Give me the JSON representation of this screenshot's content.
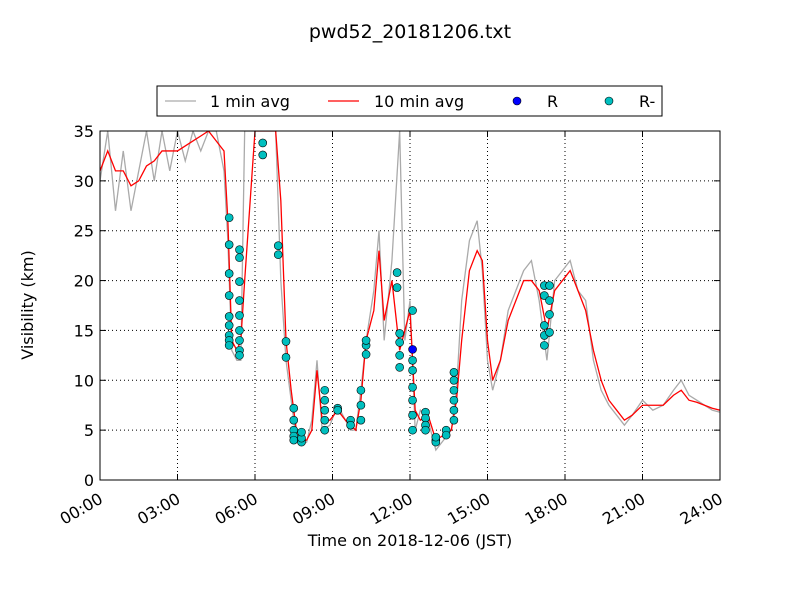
{
  "chart_data": {
    "type": "line",
    "title": "pwd52_20181206.txt",
    "xlabel": "Time on 2018-12-06 (JST)",
    "ylabel": "Visibility (km)",
    "xlim": [
      0,
      24
    ],
    "ylim": [
      0,
      35
    ],
    "xticks": [
      {
        "value": 0,
        "label": "00:00"
      },
      {
        "value": 3,
        "label": "03:00"
      },
      {
        "value": 6,
        "label": "06:00"
      },
      {
        "value": 9,
        "label": "09:00"
      },
      {
        "value": 12,
        "label": "12:00"
      },
      {
        "value": 15,
        "label": "15:00"
      },
      {
        "value": 18,
        "label": "18:00"
      },
      {
        "value": 21,
        "label": "21:00"
      },
      {
        "value": 24,
        "label": "24:00"
      }
    ],
    "yticks": [
      0,
      5,
      10,
      15,
      20,
      25,
      30,
      35
    ],
    "grid": true,
    "legend": "top",
    "series": [
      {
        "name": "1 min avg",
        "kind": "line",
        "color": "#aaaaaa",
        "x": [
          0,
          0.3,
          0.6,
          0.9,
          1.2,
          1.5,
          1.8,
          2.1,
          2.4,
          2.7,
          3.0,
          3.3,
          3.6,
          3.9,
          4.2,
          4.5,
          4.8,
          4.95,
          5.1,
          5.3,
          5.45,
          5.6,
          6.0,
          6.4,
          6.8,
          7.0,
          7.2,
          7.4,
          7.6,
          7.8,
          8.0,
          8.2,
          8.4,
          8.6,
          8.9,
          9.2,
          9.5,
          9.7,
          9.9,
          10.1,
          10.3,
          10.6,
          10.8,
          11.0,
          11.3,
          11.6,
          11.8,
          12.0,
          12.2,
          12.4,
          12.7,
          13.0,
          13.3,
          13.6,
          13.8,
          14.0,
          14.3,
          14.6,
          14.8,
          15.0,
          15.2,
          15.5,
          15.8,
          16.1,
          16.4,
          16.7,
          17.0,
          17.3,
          17.6,
          17.9,
          18.2,
          18.5,
          18.8,
          19.1,
          19.4,
          19.7,
          20.0,
          20.3,
          20.6,
          21.0,
          21.4,
          21.8,
          22.2,
          22.5,
          22.8,
          23.1,
          23.4,
          23.7,
          24.0
        ],
        "values": [
          30,
          35,
          27,
          33,
          27,
          31,
          35,
          30,
          35,
          31,
          35,
          32,
          35,
          33,
          35,
          35,
          31,
          24,
          13,
          12,
          12,
          35,
          35,
          35,
          35,
          20,
          12,
          8,
          4,
          3.5,
          3.8,
          6,
          12,
          5,
          5.5,
          7.5,
          6,
          5,
          5,
          9,
          14,
          19,
          25,
          14,
          22,
          35,
          14,
          18,
          5,
          7,
          6,
          3,
          4,
          5,
          9,
          18,
          24,
          26,
          21,
          12,
          9,
          12,
          17,
          19,
          21,
          22,
          18,
          12,
          20,
          21,
          22,
          19,
          18,
          12,
          9,
          7.5,
          6.5,
          5.5,
          6.5,
          8,
          7,
          7.5,
          9,
          10,
          8.5,
          8,
          7.5,
          7,
          6.8
        ]
      },
      {
        "name": "10 min avg",
        "kind": "line",
        "color": "#ff0000",
        "x": [
          0,
          0.3,
          0.6,
          0.9,
          1.2,
          1.5,
          1.8,
          2.1,
          2.4,
          2.7,
          3.0,
          3.3,
          3.6,
          3.9,
          4.2,
          4.5,
          4.8,
          4.95,
          5.1,
          5.3,
          5.45,
          5.6,
          6.0,
          6.4,
          6.8,
          7.0,
          7.2,
          7.4,
          7.6,
          7.8,
          8.0,
          8.2,
          8.4,
          8.6,
          8.9,
          9.2,
          9.5,
          9.7,
          9.9,
          10.1,
          10.3,
          10.6,
          10.8,
          11.0,
          11.3,
          11.6,
          11.8,
          12.0,
          12.2,
          12.4,
          12.7,
          13.0,
          13.3,
          13.6,
          13.8,
          14.0,
          14.3,
          14.6,
          14.8,
          15.0,
          15.2,
          15.5,
          15.8,
          16.1,
          16.4,
          16.7,
          17.0,
          17.3,
          17.6,
          17.9,
          18.2,
          18.5,
          18.8,
          19.1,
          19.4,
          19.7,
          20.0,
          20.3,
          20.6,
          21.0,
          21.4,
          21.8,
          22.2,
          22.5,
          22.8,
          23.1,
          23.4,
          23.7,
          24.0
        ],
        "values": [
          31,
          33,
          31,
          31,
          29.5,
          30,
          31.5,
          32,
          33,
          33,
          33,
          33.5,
          34,
          34.5,
          35,
          34,
          33,
          26,
          14,
          13,
          14,
          20,
          35,
          35,
          35,
          28,
          14,
          9,
          5,
          4,
          4,
          5,
          11,
          6,
          6,
          7,
          6,
          5.5,
          5,
          8,
          14,
          17,
          23,
          16,
          20,
          13,
          15,
          17,
          7,
          6,
          6.5,
          4,
          4.5,
          5,
          8,
          14,
          21,
          23,
          22,
          14,
          10,
          12,
          16,
          18,
          20,
          20,
          19,
          15,
          19,
          20,
          21,
          19,
          17,
          13,
          10,
          8,
          7,
          6,
          6.5,
          7.5,
          7.5,
          7.5,
          8.5,
          9,
          8,
          7.8,
          7.5,
          7.2,
          7
        ]
      },
      {
        "name": "R",
        "kind": "scatter",
        "color": "#0000ff",
        "x": [
          12.1
        ],
        "values": [
          13.1
        ]
      },
      {
        "name": "R-",
        "kind": "scatter",
        "color": "#00bfbf",
        "x": [
          5.0,
          5.0,
          5.0,
          5.0,
          5.0,
          5.0,
          5.0,
          5.0,
          5.0,
          5.4,
          5.4,
          5.4,
          5.4,
          5.4,
          5.4,
          5.4,
          5.4,
          5.4,
          6.3,
          6.3,
          6.9,
          6.9,
          7.2,
          7.2,
          7.5,
          7.5,
          7.5,
          7.5,
          7.5,
          7.8,
          7.8,
          7.8,
          7.8,
          8.7,
          8.7,
          8.7,
          8.7,
          8.7,
          9.2,
          9.2,
          9.2,
          9.7,
          9.7,
          10.1,
          10.1,
          10.1,
          10.3,
          10.3,
          10.3,
          11.5,
          11.5,
          11.6,
          11.6,
          11.6,
          11.6,
          12.1,
          12.1,
          12.1,
          12.1,
          12.1,
          12.1,
          12.1,
          12.6,
          12.6,
          12.6,
          12.6,
          13.0,
          13.0,
          13.0,
          13.4,
          13.4,
          13.7,
          13.7,
          13.7,
          13.7,
          13.7,
          13.7,
          17.2,
          17.2,
          17.2,
          17.2,
          17.2,
          17.4,
          17.4,
          17.4,
          17.4
        ],
        "values": [
          26.3,
          23.6,
          20.7,
          18.5,
          16.4,
          15.5,
          14.5,
          14,
          13.5,
          23.1,
          22.3,
          19.9,
          18,
          16.5,
          15,
          14,
          13,
          12.5,
          33.8,
          32.6,
          23.5,
          22.6,
          13.9,
          12.3,
          7.2,
          6,
          5,
          4.4,
          4,
          4,
          3.8,
          4.2,
          4.8,
          9,
          8,
          7,
          6,
          5,
          7,
          7.2,
          7,
          6,
          5.5,
          6,
          7.5,
          9,
          12.6,
          13.5,
          14,
          20.8,
          19.3,
          14.7,
          13.8,
          12.5,
          11.3,
          17,
          12,
          11,
          9.3,
          8,
          6.5,
          5,
          6.8,
          6.2,
          5.5,
          5,
          4,
          3.8,
          4.3,
          5,
          4.5,
          6,
          7,
          8,
          9,
          10,
          10.8,
          19.5,
          18.5,
          15.5,
          14.5,
          13.5,
          19.5,
          18,
          16.6,
          14.8
        ]
      }
    ]
  }
}
